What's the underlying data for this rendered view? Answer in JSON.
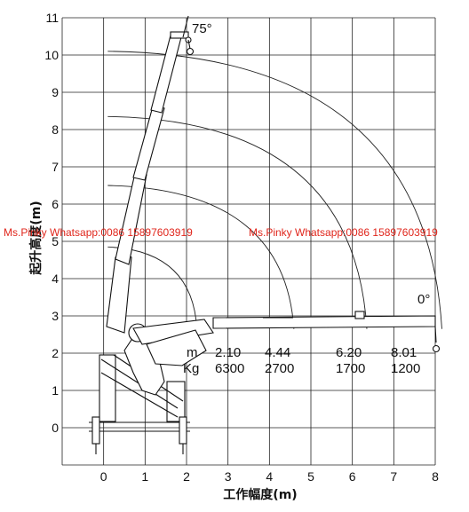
{
  "chart_data": {
    "type": "diagram",
    "x_axis": {
      "title": "工作幅度(m)",
      "ticks": [
        "0",
        "1",
        "2",
        "3",
        "4",
        "5",
        "6",
        "7",
        "8"
      ],
      "range": [
        -1,
        8
      ]
    },
    "y_axis": {
      "title": "起升高度(m)",
      "ticks": [
        "0",
        "1",
        "2",
        "3",
        "4",
        "5",
        "6",
        "7",
        "8",
        "9",
        "10",
        "11"
      ],
      "range": [
        -1,
        11
      ]
    },
    "angles": {
      "max": "75°",
      "min": "0°"
    },
    "capacity": {
      "row_m_label": "m",
      "row_kg_label": "Kg",
      "radius": [
        "2.10",
        "4.44",
        "6.20",
        "8.01"
      ],
      "load": [
        "6300",
        "2700",
        "1700",
        "1200"
      ]
    },
    "arcs": [
      {
        "radius_m": 2.1,
        "end_height_m": 4.85
      },
      {
        "radius_m": 4.44,
        "end_height_m": 6.5
      },
      {
        "radius_m": 6.2,
        "end_height_m": 8.35
      },
      {
        "radius_m": 8.01,
        "end_height_m": 10.1
      }
    ],
    "grid": true
  },
  "watermark": {
    "left": "Ms.Pinky Whatsapp:0086 15897603919",
    "right": "Ms.Pinky Whatsapp:0086 15897603919",
    "color": "#e0261c"
  }
}
